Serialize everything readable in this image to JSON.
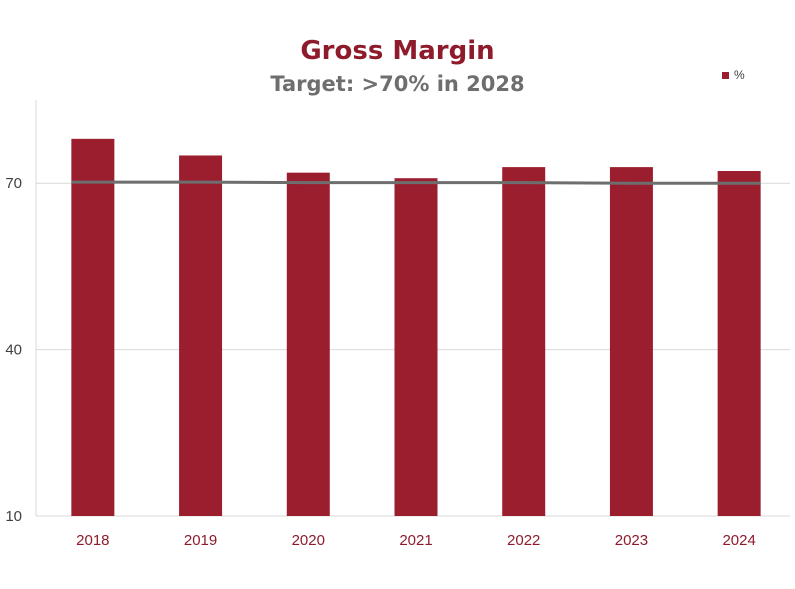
{
  "chart_data": {
    "type": "bar",
    "title": "Gross Margin",
    "subtitle": "Target: >70% in 2028",
    "categories": [
      "2018",
      "2019",
      "2020",
      "2021",
      "2022",
      "2023",
      "2024"
    ],
    "series": [
      {
        "name": "%",
        "values": [
          78.0,
          75.0,
          71.9,
          70.9,
          72.9,
          72.9,
          72.2
        ],
        "color": "#9A1E2E"
      }
    ],
    "target_line": {
      "values": [
        70.2,
        70.2,
        70.1,
        70.1,
        70.1,
        70.0,
        70.0
      ],
      "color": "#6E6E6E"
    },
    "xlabel": "",
    "ylabel": "",
    "ylim": [
      10,
      85
    ],
    "yticks": [
      "10",
      "40",
      "70"
    ],
    "grid": true,
    "legend_position": "top-right"
  }
}
